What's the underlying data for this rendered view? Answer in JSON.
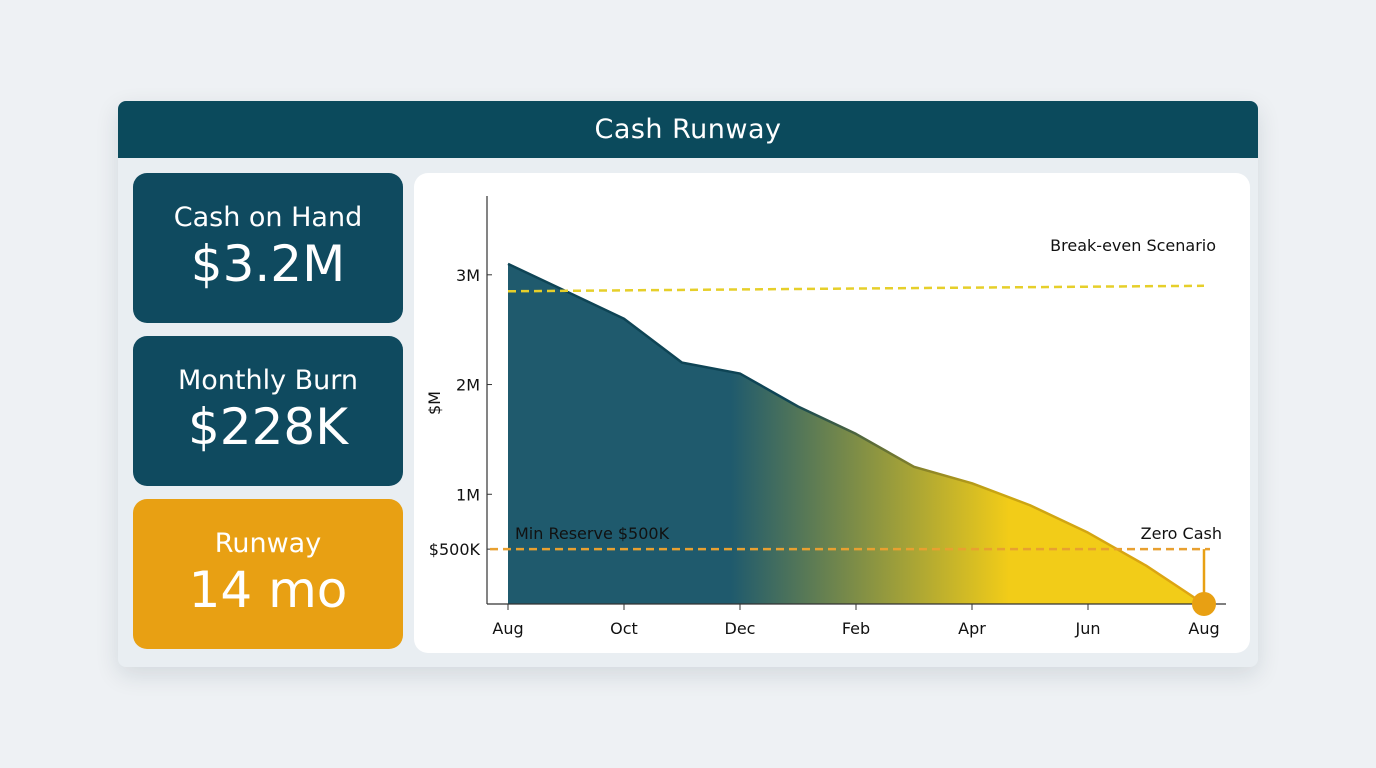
{
  "header": {
    "title": "Cash Runway"
  },
  "kpis": [
    {
      "label": "Cash on Hand",
      "value": "$3.2M"
    },
    {
      "label": "Monthly Burn",
      "value": "$228K"
    },
    {
      "label": "Runway",
      "value": "14 mo"
    }
  ],
  "colors": {
    "header": "#0b4a5c",
    "kpi_dark": "#0f4a5f",
    "kpi_accent": "#e8a013",
    "area_start": "#1f5a6d",
    "area_end": "#f2cc18",
    "break_even_line": "#e6cf2a",
    "reserve_line": "#e8a030",
    "zero_marker": "#e8a013"
  },
  "chart_data": {
    "type": "area",
    "title": "",
    "xlabel": "",
    "ylabel": "$M",
    "x_ticks": [
      "Aug",
      "Oct",
      "Dec",
      "Feb",
      "Apr",
      "Jun",
      "Aug"
    ],
    "y_ticks": [
      {
        "label": "3M",
        "value": 3.0
      },
      {
        "label": "2M",
        "value": 2.0
      },
      {
        "label": "1M",
        "value": 1.0
      },
      {
        "label": "$500K",
        "value": 0.5
      }
    ],
    "ylim": [
      0,
      3.7
    ],
    "xlim": [
      0,
      12
    ],
    "grid": false,
    "series": [
      {
        "x": [
          0,
          1,
          2,
          3,
          4,
          5,
          6,
          7,
          8,
          9,
          10,
          11,
          12
        ],
        "values": [
          3.1,
          2.85,
          2.6,
          2.2,
          2.1,
          1.8,
          1.55,
          1.25,
          1.1,
          0.9,
          0.65,
          0.35,
          0.0
        ]
      }
    ],
    "reference_lines": [
      {
        "label": "Break-even Scenario",
        "from": 2.85,
        "to": 2.9,
        "style": "dashed"
      },
      {
        "label": "Min Reserve $500K",
        "value": 0.5,
        "style": "dashed"
      }
    ],
    "annotations": [
      {
        "label": "Zero Cash",
        "x": 12,
        "y": 0
      }
    ]
  }
}
